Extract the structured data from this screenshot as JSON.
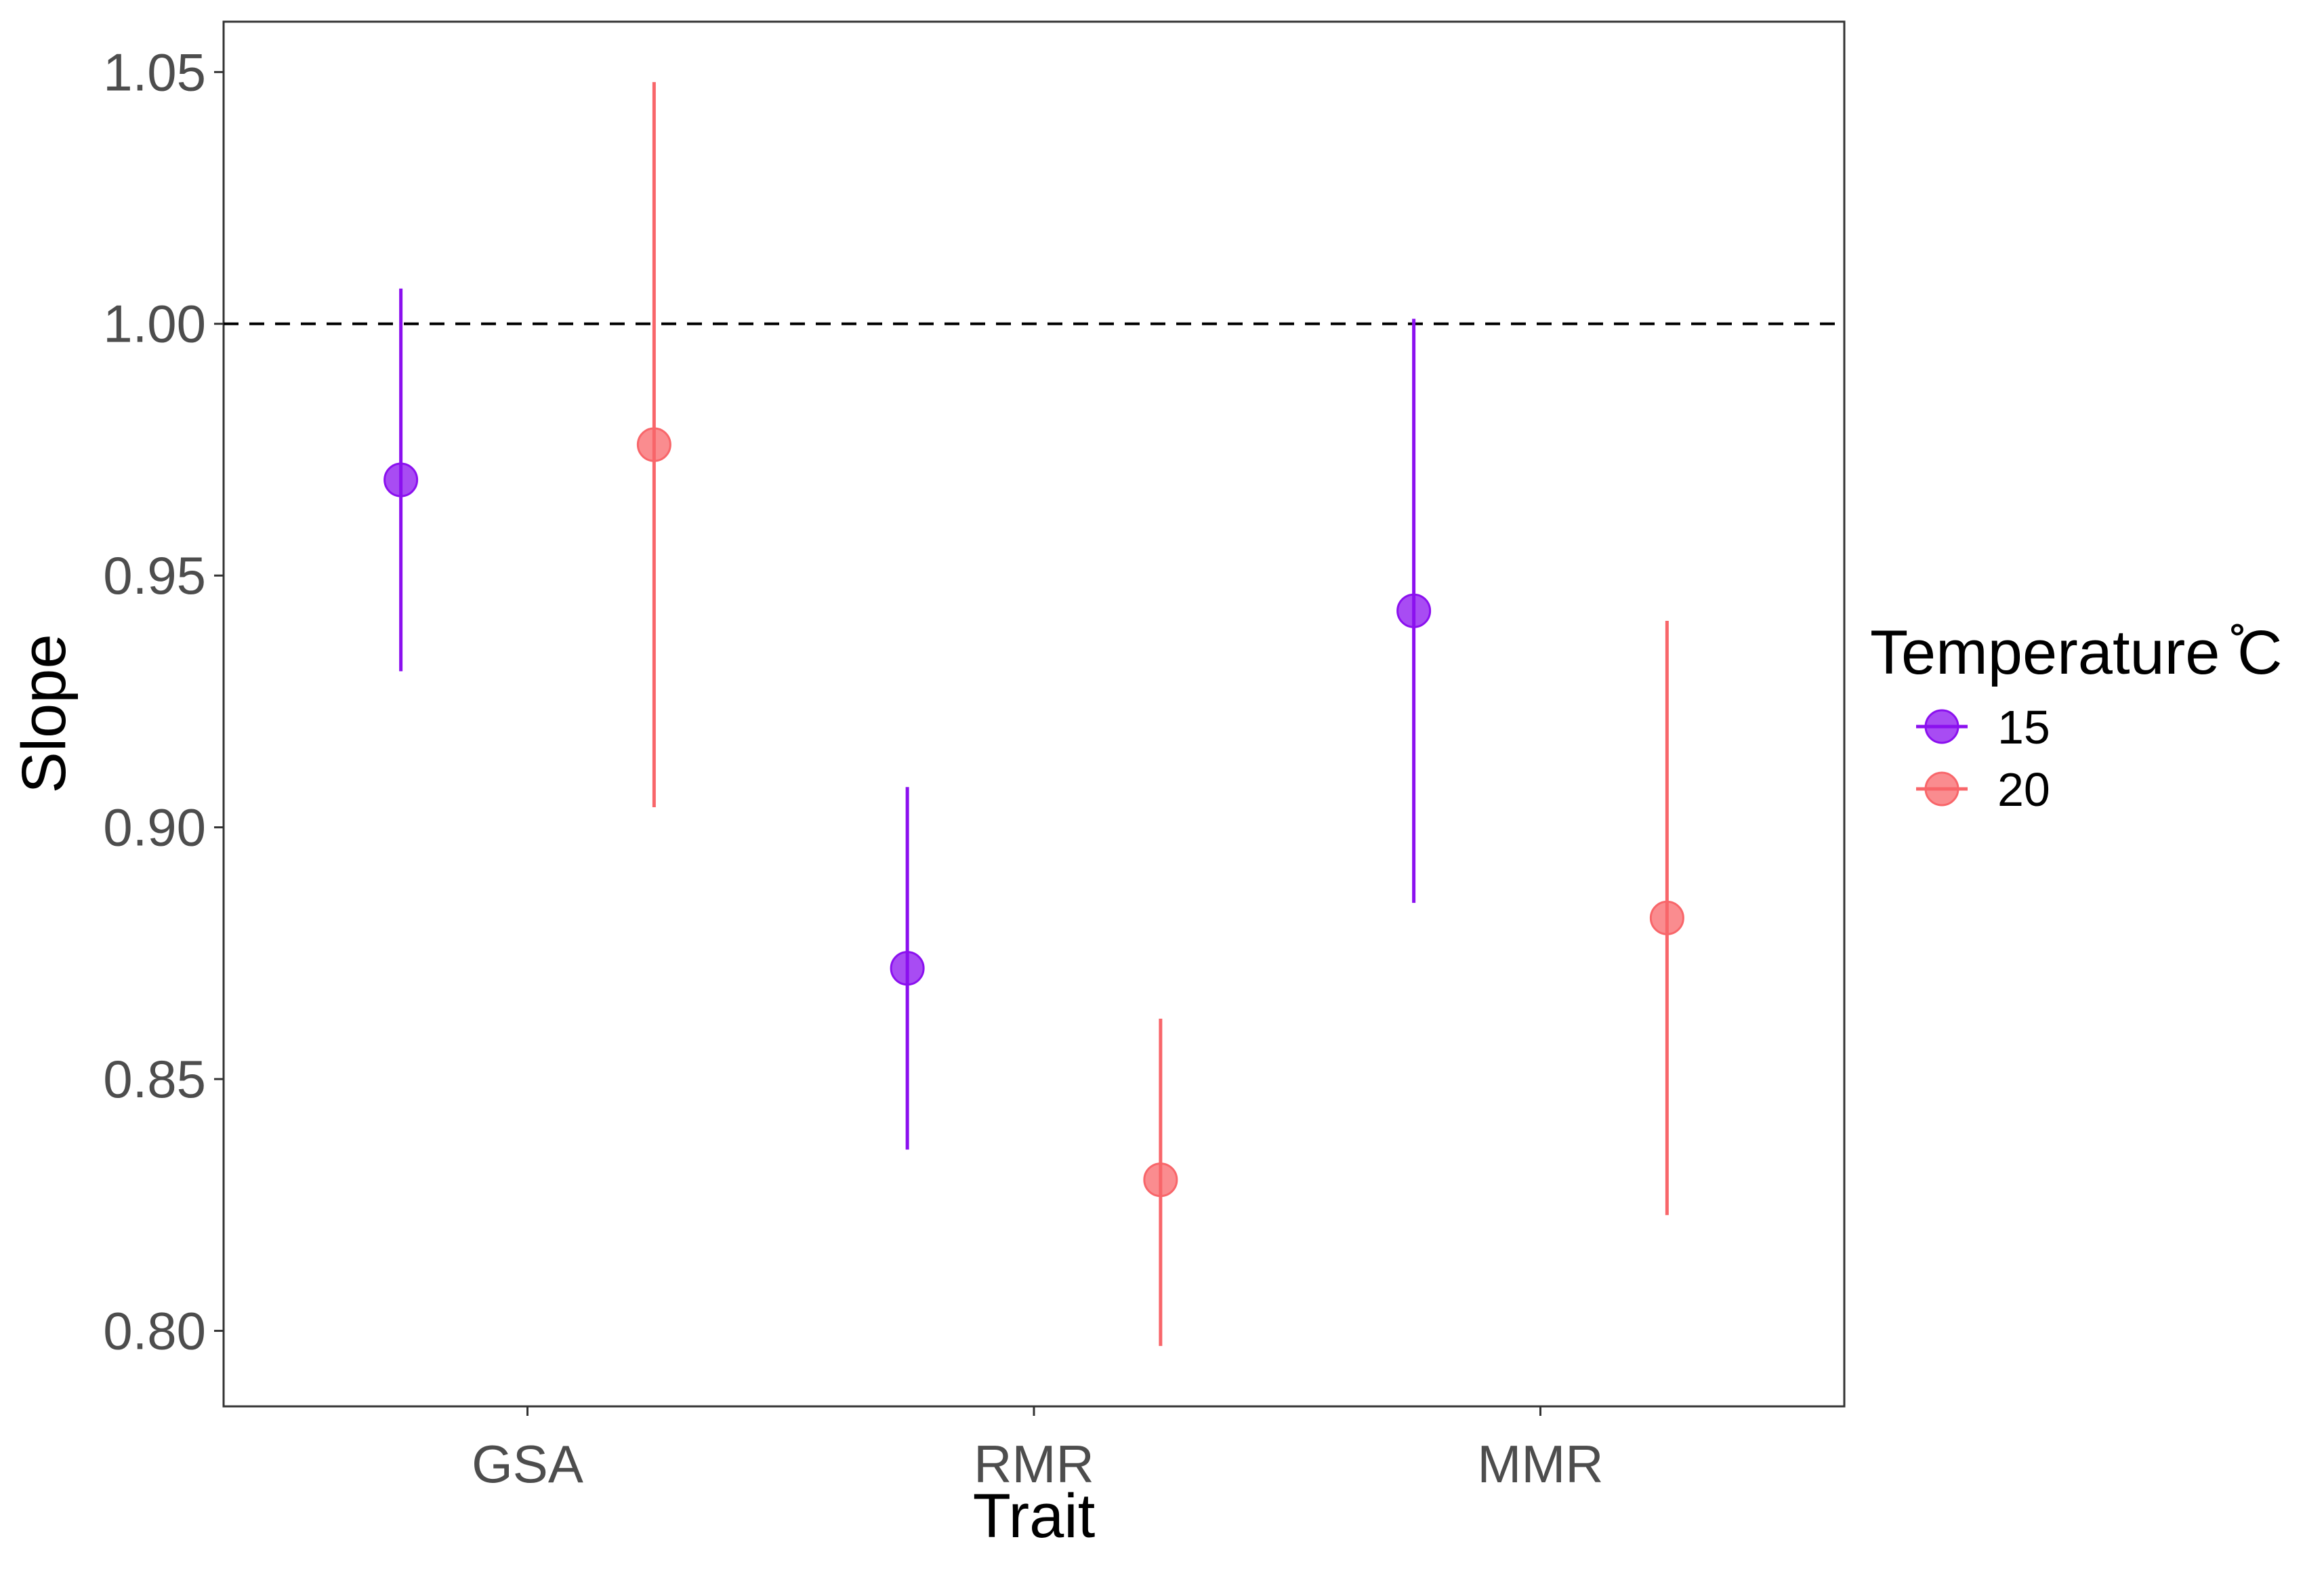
{
  "chart_data": {
    "type": "scatter",
    "subtype": "point-range",
    "title": "",
    "xlabel": "Trait",
    "ylabel": "Slope",
    "categories": [
      "GSA",
      "RMR",
      "MMR"
    ],
    "ylim": [
      0.785,
      1.06
    ],
    "yticks": [
      "0.80",
      "0.85",
      "0.90",
      "0.95",
      "1.00",
      "1.05"
    ],
    "reference_line": {
      "y": 1.0,
      "style": "dashed"
    },
    "grid": false,
    "legend": {
      "title": "Temperature ̊C",
      "position": "right"
    },
    "series": [
      {
        "name": "15",
        "color": "#8b10ef",
        "points": [
          {
            "category": "GSA",
            "y": 0.969,
            "lower": 0.931,
            "upper": 1.007
          },
          {
            "category": "RMR",
            "y": 0.872,
            "lower": 0.836,
            "upper": 0.908
          },
          {
            "category": "MMR",
            "y": 0.943,
            "lower": 0.885,
            "upper": 1.001
          }
        ]
      },
      {
        "name": "20",
        "color": "#f8666a",
        "points": [
          {
            "category": "GSA",
            "y": 0.976,
            "lower": 0.904,
            "upper": 1.048
          },
          {
            "category": "RMR",
            "y": 0.83,
            "lower": 0.797,
            "upper": 0.862
          },
          {
            "category": "MMR",
            "y": 0.882,
            "lower": 0.823,
            "upper": 0.941
          }
        ]
      }
    ]
  }
}
